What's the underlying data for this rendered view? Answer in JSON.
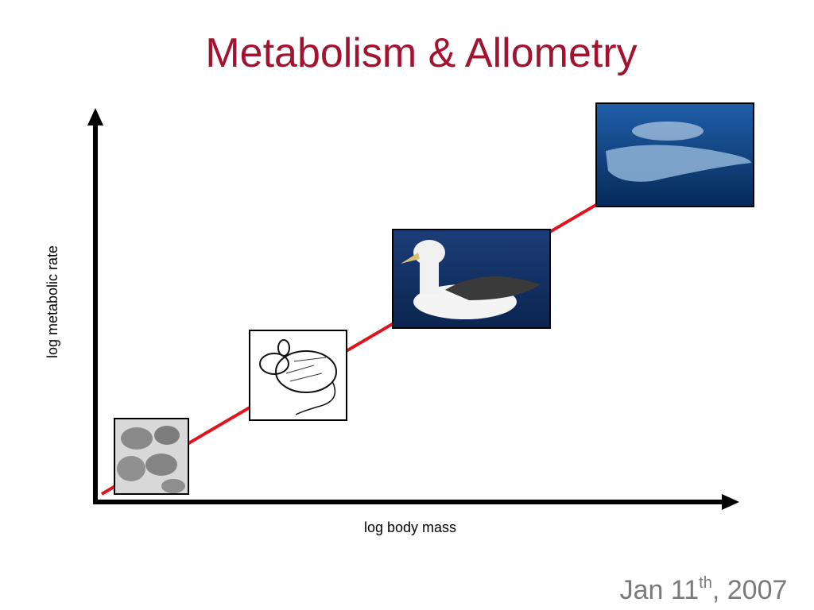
{
  "title": "Metabolism & Allometry",
  "axes": {
    "y_label": "log metabolic rate",
    "x_label": "log body mass"
  },
  "date": {
    "main": "Jan 11",
    "superscript": "th",
    "rest": ", 2007"
  }
}
